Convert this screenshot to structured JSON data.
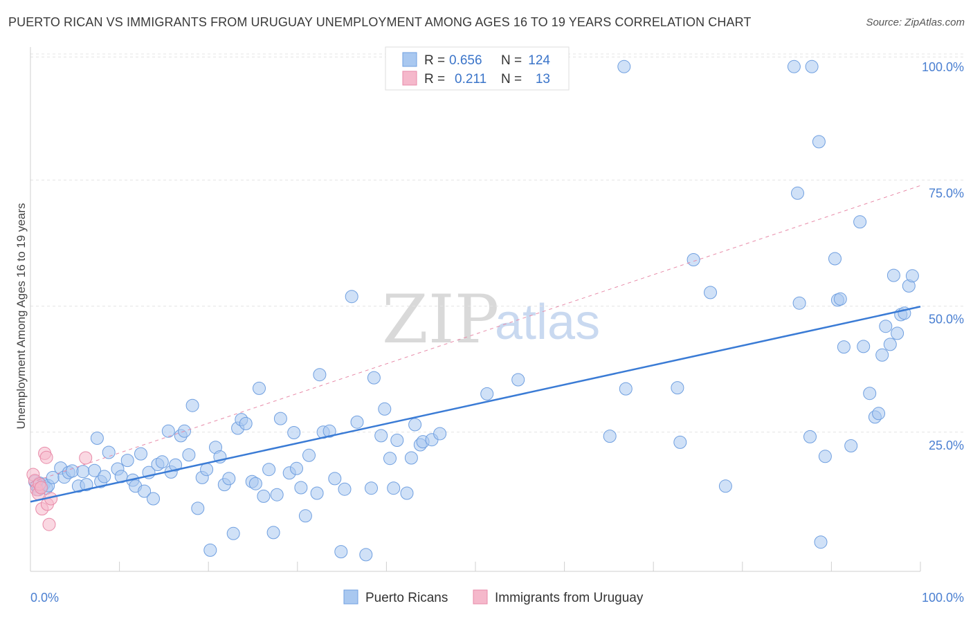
{
  "title": "PUERTO RICAN VS IMMIGRANTS FROM URUGUAY UNEMPLOYMENT AMONG AGES 16 TO 19 YEARS CORRELATION CHART",
  "source": "Source: ZipAtlas.com",
  "watermark": {
    "zip": "ZIP",
    "atlas": "atlas"
  },
  "chart_data": {
    "type": "scatter",
    "title": "PUERTO RICAN VS IMMIGRANTS FROM URUGUAY UNEMPLOYMENT AMONG AGES 16 TO 19 YEARS CORRELATION CHART",
    "xlabel": "",
    "ylabel": "Unemployment Among Ages 16 to 19 years",
    "xlim": [
      0,
      100
    ],
    "ylim": [
      0,
      102
    ],
    "x_ticks": [
      {
        "value": 0,
        "label": "0.0%"
      },
      {
        "value": 100,
        "label": "100.0%"
      }
    ],
    "y_ticks": [
      {
        "value": 25,
        "label": "25.0%"
      },
      {
        "value": 50,
        "label": "50.0%"
      },
      {
        "value": 75,
        "label": "75.0%"
      },
      {
        "value": 100,
        "label": "100.0%"
      }
    ],
    "grid": true,
    "legend_position": "bottom",
    "stats": [
      {
        "r_label": "R =",
        "r": "0.656",
        "n_label": "N =",
        "n": "124",
        "color": "#a9c8f0"
      },
      {
        "r_label": "R =",
        "r": "0.211",
        "n_label": "N =",
        "n": "13",
        "color": "#f5b8cb"
      }
    ],
    "series": [
      {
        "name": "Puerto Ricans",
        "color": "#a9c8f0",
        "stroke": "#6f9fe0",
        "trend": {
          "x0": 0,
          "y0": 13.8,
          "x1": 100,
          "y1": 52.5,
          "color": "#3a7bd5"
        },
        "points": [
          [
            0.5,
            17.8
          ],
          [
            0.7,
            16.9
          ],
          [
            0.9,
            16.2
          ],
          [
            1.0,
            17.5
          ],
          [
            1.3,
            16.8
          ],
          [
            1.5,
            17.3
          ],
          [
            1.8,
            16.5
          ],
          [
            2.0,
            17.0
          ],
          [
            2.5,
            18.6
          ],
          [
            3.4,
            20.5
          ],
          [
            3.8,
            18.7
          ],
          [
            4.3,
            19.6
          ],
          [
            4.7,
            19.9
          ],
          [
            5.4,
            16.9
          ],
          [
            5.9,
            19.8
          ],
          [
            6.3,
            17.2
          ],
          [
            7.2,
            20.0
          ],
          [
            7.5,
            26.4
          ],
          [
            7.9,
            17.8
          ],
          [
            8.3,
            18.8
          ],
          [
            8.8,
            23.6
          ],
          [
            9.8,
            20.3
          ],
          [
            10.2,
            18.8
          ],
          [
            10.9,
            22.0
          ],
          [
            11.5,
            18.1
          ],
          [
            11.8,
            16.9
          ],
          [
            12.4,
            23.3
          ],
          [
            12.8,
            15.9
          ],
          [
            13.3,
            19.6
          ],
          [
            13.8,
            14.4
          ],
          [
            14.3,
            21.2
          ],
          [
            14.8,
            21.7
          ],
          [
            15.5,
            27.8
          ],
          [
            15.8,
            19.7
          ],
          [
            16.3,
            21.1
          ],
          [
            16.9,
            26.9
          ],
          [
            17.3,
            27.8
          ],
          [
            17.8,
            23.1
          ],
          [
            18.2,
            32.9
          ],
          [
            18.8,
            12.5
          ],
          [
            19.3,
            18.6
          ],
          [
            19.8,
            20.2
          ],
          [
            20.2,
            4.2
          ],
          [
            20.8,
            24.6
          ],
          [
            21.3,
            22.7
          ],
          [
            21.8,
            17.2
          ],
          [
            22.3,
            18.4
          ],
          [
            22.8,
            7.5
          ],
          [
            23.3,
            28.4
          ],
          [
            23.7,
            30.1
          ],
          [
            24.2,
            29.3
          ],
          [
            24.9,
            17.8
          ],
          [
            25.3,
            17.4
          ],
          [
            25.7,
            36.3
          ],
          [
            26.2,
            14.9
          ],
          [
            26.8,
            20.2
          ],
          [
            27.3,
            7.7
          ],
          [
            27.7,
            15.2
          ],
          [
            28.1,
            30.3
          ],
          [
            29.1,
            19.5
          ],
          [
            29.6,
            27.5
          ],
          [
            29.9,
            20.4
          ],
          [
            30.4,
            16.6
          ],
          [
            30.9,
            11.0
          ],
          [
            31.3,
            23.0
          ],
          [
            32.2,
            15.5
          ],
          [
            32.5,
            39.0
          ],
          [
            32.9,
            27.6
          ],
          [
            33.6,
            27.8
          ],
          [
            34.2,
            18.4
          ],
          [
            34.9,
            3.9
          ],
          [
            35.3,
            16.3
          ],
          [
            36.1,
            54.5
          ],
          [
            36.7,
            29.6
          ],
          [
            37.7,
            3.3
          ],
          [
            38.3,
            16.5
          ],
          [
            38.6,
            38.4
          ],
          [
            39.4,
            26.9
          ],
          [
            39.8,
            32.2
          ],
          [
            40.4,
            22.4
          ],
          [
            40.8,
            16.5
          ],
          [
            41.2,
            26.0
          ],
          [
            42.3,
            15.5
          ],
          [
            42.8,
            22.5
          ],
          [
            43.2,
            29.1
          ],
          [
            43.8,
            25.1
          ],
          [
            44.1,
            25.7
          ],
          [
            45.1,
            26.1
          ],
          [
            46.0,
            27.3
          ],
          [
            51.3,
            35.2
          ],
          [
            54.8,
            38.0
          ],
          [
            65.1,
            26.8
          ],
          [
            66.7,
            100.1
          ],
          [
            66.9,
            36.2
          ],
          [
            72.7,
            36.4
          ],
          [
            73.0,
            25.6
          ],
          [
            74.5,
            61.8
          ],
          [
            76.4,
            55.3
          ],
          [
            78.1,
            16.9
          ],
          [
            85.8,
            100.1
          ],
          [
            87.8,
            100.1
          ],
          [
            86.2,
            75.0
          ],
          [
            86.4,
            53.2
          ],
          [
            87.6,
            26.7
          ],
          [
            88.6,
            85.2
          ],
          [
            88.8,
            5.8
          ],
          [
            89.3,
            22.8
          ],
          [
            90.4,
            62.0
          ],
          [
            90.7,
            53.8
          ],
          [
            91.0,
            54.0
          ],
          [
            91.4,
            44.5
          ],
          [
            92.2,
            24.9
          ],
          [
            93.2,
            69.3
          ],
          [
            93.6,
            44.6
          ],
          [
            94.3,
            35.3
          ],
          [
            94.9,
            30.6
          ],
          [
            95.3,
            31.3
          ],
          [
            95.7,
            42.9
          ],
          [
            96.1,
            48.6
          ],
          [
            96.6,
            45.0
          ],
          [
            97.0,
            58.7
          ],
          [
            97.4,
            47.2
          ],
          [
            97.8,
            50.9
          ],
          [
            98.2,
            51.2
          ],
          [
            98.7,
            56.6
          ],
          [
            99.1,
            58.6
          ]
        ]
      },
      {
        "name": "Immigrants from Uruguay",
        "color": "#f5b8cb",
        "stroke": "#e88aa8",
        "trend": {
          "x0": 0,
          "y0": 17.6,
          "x1": 100,
          "y1": 76.5,
          "color": "#e88aa8"
        },
        "points": [
          [
            0.3,
            19.2
          ],
          [
            0.5,
            18.0
          ],
          [
            0.7,
            16.2
          ],
          [
            0.9,
            15.4
          ],
          [
            1.0,
            17.3
          ],
          [
            1.2,
            16.6
          ],
          [
            1.3,
            12.4
          ],
          [
            1.6,
            23.4
          ],
          [
            1.8,
            22.6
          ],
          [
            1.9,
            13.3
          ],
          [
            2.1,
            9.3
          ],
          [
            2.3,
            14.4
          ],
          [
            6.2,
            22.5
          ]
        ]
      }
    ]
  }
}
